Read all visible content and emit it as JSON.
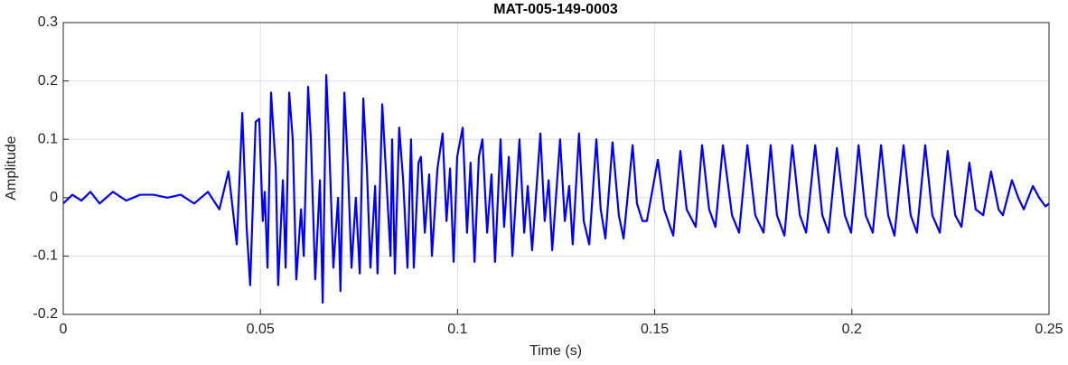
{
  "chart_data": {
    "type": "line",
    "title": "MAT-005-149-0003",
    "x_label": "Time (s)",
    "y_label": "Amplitude",
    "xlim": [
      0,
      0.25
    ],
    "xticks": [
      0,
      0.05,
      0.1,
      0.15,
      0.2,
      0.25
    ],
    "ylim": [
      -0.2,
      0.3
    ],
    "yticks": [
      -0.2,
      -0.1,
      0,
      0.1,
      0.2,
      0.3
    ],
    "grid": true,
    "series": [
      {
        "color": "#0000ff",
        "x": [
          0,
          0.0023,
          0.0046,
          0.0069,
          0.0092,
          0.0126,
          0.016,
          0.0195,
          0.0229,
          0.0264,
          0.0298,
          0.0332,
          0.0367,
          0.0396,
          0.0419,
          0.044,
          0.0454,
          0.0465,
          0.0474,
          0.0488,
          0.0497,
          0.0506,
          0.0511,
          0.0518,
          0.0527,
          0.0539,
          0.0545,
          0.0557,
          0.0564,
          0.0573,
          0.0582,
          0.0591,
          0.0603,
          0.061,
          0.0621,
          0.0628,
          0.0639,
          0.0651,
          0.0658,
          0.0667,
          0.0674,
          0.0685,
          0.0697,
          0.0703,
          0.0713,
          0.0722,
          0.0731,
          0.0742,
          0.0752,
          0.0761,
          0.077,
          0.0779,
          0.0791,
          0.0797,
          0.0809,
          0.0818,
          0.083,
          0.0834,
          0.0841,
          0.0852,
          0.0862,
          0.0873,
          0.0882,
          0.0889,
          0.0901,
          0.0907,
          0.0917,
          0.0928,
          0.0935,
          0.0949,
          0.0962,
          0.0972,
          0.0981,
          0.099,
          0.0999,
          0.1013,
          0.1024,
          0.1033,
          0.1043,
          0.1054,
          0.1063,
          0.1075,
          0.1086,
          0.1095,
          0.1109,
          0.1118,
          0.113,
          0.1139,
          0.1157,
          0.1169,
          0.1178,
          0.1189,
          0.121,
          0.1221,
          0.1231,
          0.124,
          0.126,
          0.1272,
          0.1283,
          0.1292,
          0.1308,
          0.132,
          0.1334,
          0.1352,
          0.1363,
          0.1375,
          0.1393,
          0.1409,
          0.1421,
          0.1444,
          0.1455,
          0.1469,
          0.148,
          0.1508,
          0.1524,
          0.1547,
          0.1565,
          0.1581,
          0.1604,
          0.162,
          0.1638,
          0.1654,
          0.1673,
          0.1696,
          0.1714,
          0.1735,
          0.1755,
          0.1776,
          0.1794,
          0.181,
          0.1829,
          0.1849,
          0.1868,
          0.1884,
          0.1907,
          0.1925,
          0.1941,
          0.1962,
          0.1982,
          0.1998,
          0.2017,
          0.2035,
          0.2053,
          0.2074,
          0.2092,
          0.2108,
          0.2131,
          0.2149,
          0.2165,
          0.2186,
          0.2204,
          0.2223,
          0.2243,
          0.2262,
          0.2278,
          0.2298,
          0.2314,
          0.2333,
          0.2353,
          0.2372,
          0.2383,
          0.2406,
          0.2422,
          0.2436,
          0.2459,
          0.2475,
          0.2491,
          0.25
        ],
        "values": [
          -0.01,
          0.005,
          -0.005,
          0.01,
          -0.01,
          0.01,
          -0.005,
          0.005,
          0.005,
          0,
          0.005,
          -0.01,
          0.01,
          -0.02,
          0.045,
          -0.08,
          0.145,
          -0.05,
          -0.15,
          0.13,
          0.135,
          -0.04,
          0.01,
          -0.12,
          0.18,
          0.05,
          -0.15,
          0.03,
          -0.12,
          0.18,
          0.1,
          -0.14,
          -0.02,
          -0.1,
          0.19,
          0.1,
          -0.14,
          0.03,
          -0.18,
          0.21,
          0.1,
          -0.12,
          0,
          -0.16,
          0.18,
          0.05,
          -0.12,
          0,
          -0.13,
          0.17,
          0.05,
          -0.12,
          0.02,
          -0.13,
          0.16,
          0.05,
          -0.1,
          0.1,
          -0.13,
          0.12,
          0.03,
          -0.12,
          0.1,
          -0.12,
          0.06,
          0.07,
          -0.06,
          0.04,
          -0.1,
          0.05,
          0.11,
          -0.04,
          0.05,
          -0.11,
          0.07,
          0.12,
          -0.06,
          0.06,
          -0.11,
          0.07,
          0.1,
          -0.06,
          0.04,
          -0.11,
          0.1,
          -0.05,
          0.07,
          -0.1,
          0.1,
          -0.06,
          0.02,
          -0.09,
          0.11,
          -0.04,
          0.03,
          -0.09,
          0.1,
          -0.04,
          0.02,
          -0.08,
          0.11,
          -0.04,
          -0.08,
          0.1,
          -0.02,
          -0.07,
          0.095,
          -0.03,
          -0.07,
          0.09,
          -0.01,
          -0.04,
          -0.04,
          0.065,
          -0.02,
          -0.065,
          0.08,
          -0.02,
          -0.05,
          0.09,
          -0.02,
          -0.05,
          0.09,
          -0.03,
          -0.06,
          0.09,
          -0.03,
          -0.06,
          0.09,
          -0.03,
          -0.065,
          0.09,
          -0.03,
          -0.06,
          0.09,
          -0.03,
          -0.06,
          0.085,
          -0.03,
          -0.06,
          0.09,
          -0.03,
          -0.06,
          0.09,
          -0.03,
          -0.065,
          0.09,
          -0.03,
          -0.06,
          0.09,
          -0.03,
          -0.06,
          0.08,
          -0.03,
          -0.05,
          0.06,
          -0.02,
          -0.03,
          0.045,
          -0.02,
          -0.03,
          0.03,
          0,
          -0.02,
          0.02,
          0,
          -0.015,
          -0.01
        ]
      }
    ]
  }
}
